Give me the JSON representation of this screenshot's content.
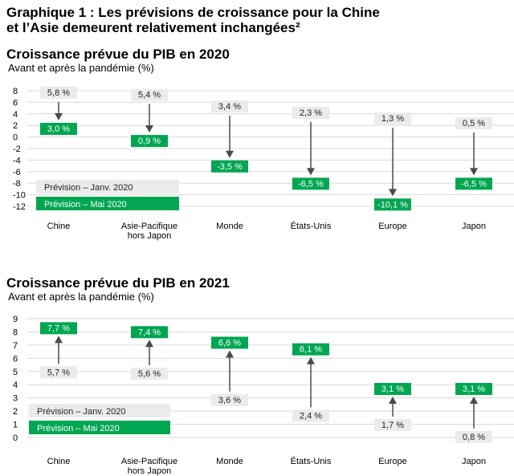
{
  "header": {
    "title_line1": "Graphique 1 : Les prévisions de croissance pour la Chine",
    "title_line2": "et l’Asie demeurent relativement inchangées²"
  },
  "colors": {
    "green": "#00a651",
    "grey_label": "#ebebeb",
    "arrow": "#4a4a4a",
    "grid": "#d9d9d9"
  },
  "chart_data": [
    {
      "type": "dot-arrow",
      "title": "Croissance prévue du PIB en 2020",
      "subtitle": "Avant et après la pandémie (%)",
      "categories": [
        "Chine",
        "Asie-Pacifique\nhors Japon",
        "Monde",
        "États-Unis",
        "Europe",
        "Japon"
      ],
      "series": [
        {
          "name": "Prévision – Janv. 2020",
          "values": [
            5.8,
            5.4,
            3.4,
            2.3,
            1.3,
            0.5
          ],
          "labels": [
            "5,8 %",
            "5,4 %",
            "3,4 %",
            "2,3 %",
            "1,3 %",
            "0,5 %"
          ]
        },
        {
          "name": "Prévision – Mai 2020",
          "values": [
            3.0,
            0.9,
            -3.5,
            -6.5,
            -10.1,
            -6.5
          ],
          "labels": [
            "3,0 %",
            "0,9 %",
            "-3,5 %",
            "-6,5 %",
            "-10,1 %",
            "-6,5 %"
          ]
        }
      ],
      "yticks": [
        "8",
        "6",
        "4",
        "2",
        "0",
        "-2",
        "-4",
        "-6",
        "-8",
        "-10",
        "-12"
      ],
      "ylim": [
        -12,
        8
      ],
      "grid": true,
      "legend": "bottom-left"
    },
    {
      "type": "dot-arrow",
      "title": "Croissance prévue du PIB en 2021",
      "subtitle": "Avant et après la pandémie (%)",
      "categories": [
        "Chine",
        "Asie-Pacifique\nhors Japon",
        "Monde",
        "États-Unis",
        "Europe",
        "Japon"
      ],
      "series": [
        {
          "name": "Prévision – Janv. 2020",
          "values": [
            5.7,
            5.6,
            3.6,
            2.4,
            1.7,
            0.8
          ],
          "labels": [
            "5,7 %",
            "5,6 %",
            "3,6 %",
            "2,4 %",
            "1,7 %",
            "0,8 %"
          ]
        },
        {
          "name": "Prévision – Mai 2020",
          "values": [
            7.7,
            7.4,
            6.6,
            6.1,
            3.1,
            3.1
          ],
          "labels": [
            "7,7 %",
            "7,4 %",
            "6,6 %",
            "6,1 %",
            "3,1 %",
            "3,1 %"
          ]
        }
      ],
      "yticks": [
        "9",
        "8",
        "7",
        "6",
        "5",
        "4",
        "3",
        "2",
        "1",
        "0"
      ],
      "ylim": [
        0,
        9
      ],
      "grid": true,
      "legend": "bottom-left"
    }
  ]
}
